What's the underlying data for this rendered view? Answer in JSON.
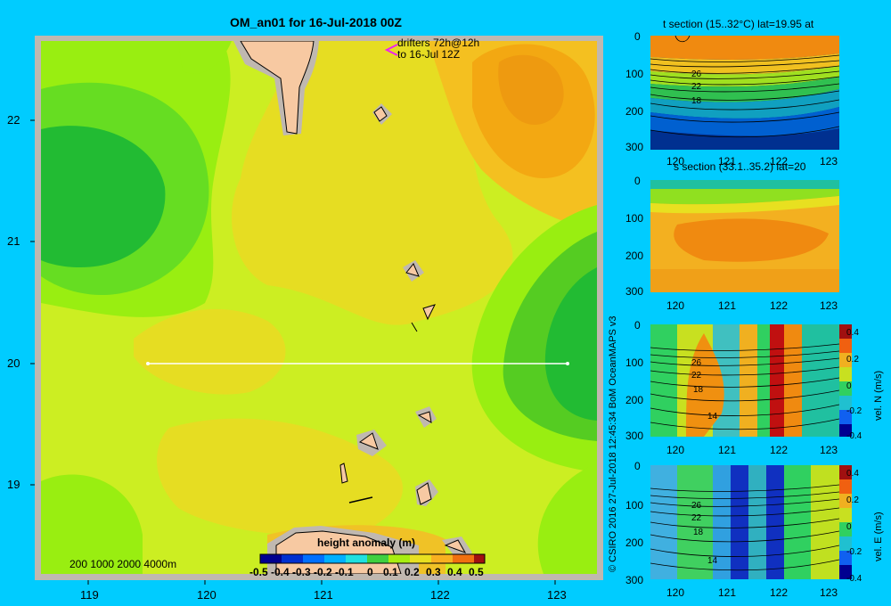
{
  "main": {
    "title": "OM_an01 for 16-Jul-2018 00Z",
    "drifter_line1": "drifters 72h@12h",
    "drifter_line2": "to 16-Jul 12Z",
    "depth_legend": "200  1000  2000  4000m",
    "colorbar_title": "height anomaly (m)",
    "colorbar_ticks": [
      "-0.5",
      "-0.4",
      "-0.3",
      "-0.2",
      "-0.1",
      "0",
      "0.1",
      "0.2",
      "0.3",
      "0.4",
      "0.5"
    ],
    "x_ticks": [
      "119",
      "120",
      "121",
      "122",
      "123"
    ],
    "y_ticks": [
      "22",
      "21",
      "20",
      "19"
    ],
    "credit": "© CSIRO 2016   27-Jul-2018 12:45:34 BoM OceanMAPS v3",
    "colors": {
      "background": "#00ccff",
      "frame": "#c0b8b0",
      "land": "#f7c9a2",
      "transect": "#ffffff",
      "drifter": "#ee22ee"
    }
  },
  "panels": [
    {
      "id": "t",
      "title": "t section (15..32°C) lat=19.95 at",
      "y_ticks": [
        "0",
        "100",
        "200",
        "300"
      ],
      "x_ticks": [
        "120",
        "121",
        "122",
        "123"
      ],
      "contour_labels": [
        "26",
        "22",
        "18"
      ]
    },
    {
      "id": "s",
      "title": "s section (33.1..35.2) lat=20",
      "y_ticks": [
        "0",
        "100",
        "200",
        "300"
      ],
      "x_ticks": [
        "120",
        "121",
        "122",
        "123"
      ],
      "contour_labels": []
    },
    {
      "id": "vn",
      "title": "",
      "y_ticks": [
        "0",
        "100",
        "200",
        "300"
      ],
      "x_ticks": [
        "120",
        "121",
        "122",
        "123"
      ],
      "contour_labels": [
        "26",
        "22",
        "18",
        "14"
      ],
      "cbar_label": "vel. N (m/s)",
      "cbar_ticks": [
        "0.4",
        "0.2",
        "0",
        "-0.2",
        "-0.4"
      ]
    },
    {
      "id": "ve",
      "title": "",
      "y_ticks": [
        "0",
        "100",
        "200",
        "300"
      ],
      "x_ticks": [
        "120",
        "121",
        "122",
        "123"
      ],
      "contour_labels": [
        "26",
        "22",
        "18",
        "14"
      ],
      "cbar_label": "vel. E (m/s)",
      "cbar_ticks": [
        "0.4",
        "0.2",
        "0",
        "-0.2",
        "-0.4"
      ]
    }
  ],
  "chart_data": [
    {
      "type": "heatmap",
      "title": "OM_an01 for 16-Jul-2018 00Z",
      "variable": "height anomaly (m)",
      "xlim": [
        118.5,
        123.5
      ],
      "ylim": [
        18.3,
        22.7
      ],
      "x_ticks": [
        119,
        120,
        121,
        122,
        123
      ],
      "y_ticks": [
        19,
        20,
        21,
        22
      ],
      "color_range": [
        -0.5,
        0.5
      ],
      "transect": {
        "lat": 20,
        "lon_start": 119.5,
        "lon_end": 123.2
      },
      "anomaly_features": [
        {
          "lon": 119.0,
          "lat": 21.5,
          "value": -0.05
        },
        {
          "lon": 123.3,
          "lat": 20.2,
          "value": -0.1
        },
        {
          "lon": 122.5,
          "lat": 22.3,
          "value": 0.3
        },
        {
          "lon": 121.3,
          "lat": 20.7,
          "value": 0.18
        },
        {
          "lon": 120.6,
          "lat": 21.6,
          "value": 0.15
        }
      ]
    },
    {
      "type": "heatmap",
      "title": "t section (15..32°C) lat=19.95 at",
      "xlim": [
        119.5,
        123.2
      ],
      "ylim": [
        300,
        0
      ],
      "x_ticks": [
        120,
        121,
        122,
        123
      ],
      "y_ticks": [
        0,
        100,
        200,
        300
      ],
      "contour_labels": [
        26,
        22,
        18
      ]
    },
    {
      "type": "heatmap",
      "title": "s section (33.1..35.2) lat=20",
      "xlim": [
        119.5,
        123.2
      ],
      "ylim": [
        300,
        0
      ],
      "x_ticks": [
        120,
        121,
        122,
        123
      ],
      "y_ticks": [
        0,
        100,
        200,
        300
      ]
    },
    {
      "type": "heatmap",
      "variable": "vel. N (m/s)",
      "xlim": [
        119.5,
        123.2
      ],
      "ylim": [
        300,
        0
      ],
      "color_range": [
        -0.4,
        0.4
      ],
      "x_ticks": [
        120,
        121,
        122,
        123
      ],
      "y_ticks": [
        0,
        100,
        200,
        300
      ],
      "contour_labels": [
        26,
        22,
        18,
        14
      ]
    },
    {
      "type": "heatmap",
      "variable": "vel. E (m/s)",
      "xlim": [
        119.5,
        123.2
      ],
      "ylim": [
        300,
        0
      ],
      "color_range": [
        -0.4,
        0.4
      ],
      "x_ticks": [
        120,
        121,
        122,
        123
      ],
      "y_ticks": [
        0,
        100,
        200,
        300
      ],
      "contour_labels": [
        26,
        22,
        18,
        14
      ]
    }
  ]
}
